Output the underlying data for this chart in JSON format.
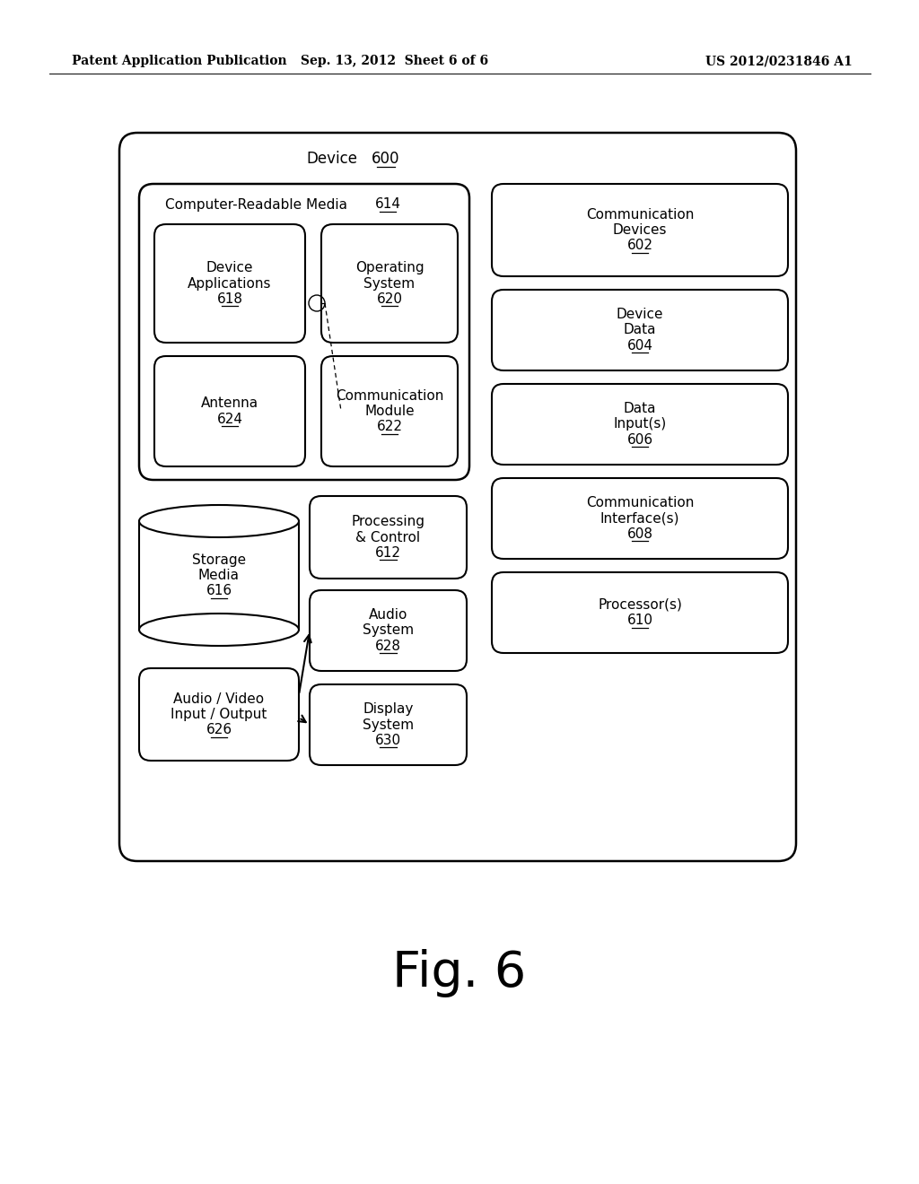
{
  "bg_color": "#ffffff",
  "header_left": "Patent Application Publication",
  "header_center": "Sep. 13, 2012  Sheet 6 of 6",
  "header_right": "US 2012/0231846 A1",
  "fig_label": "Fig. 6"
}
